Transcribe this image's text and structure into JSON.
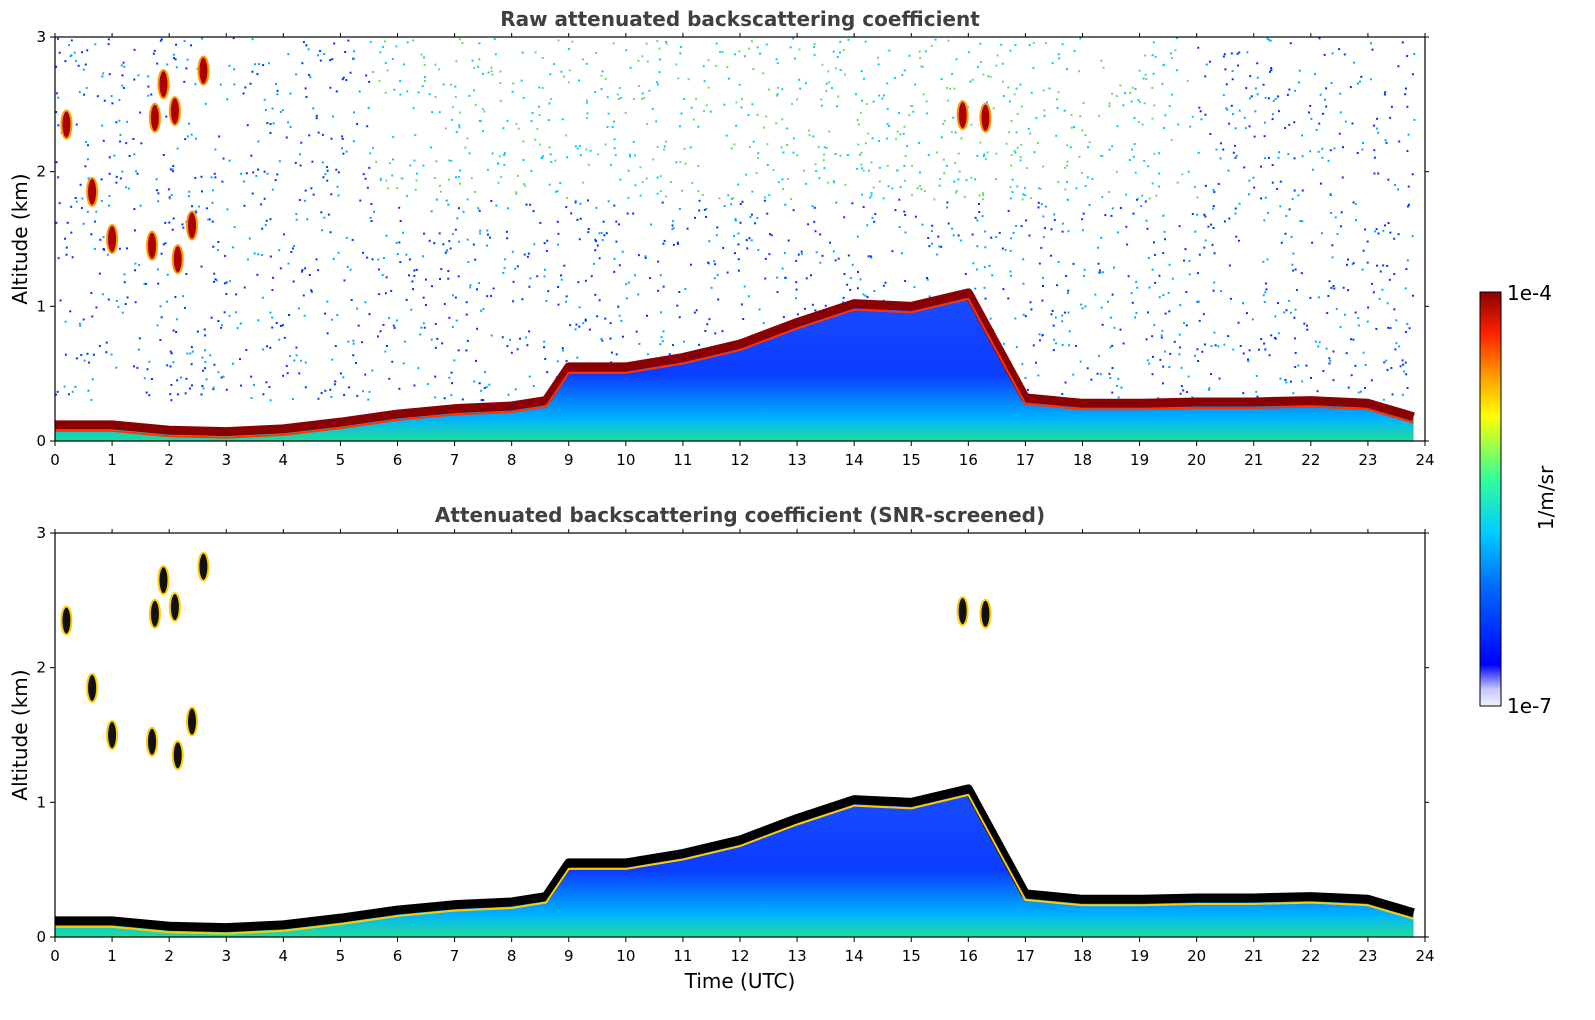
{
  "chart_data": [
    {
      "type": "heatmap",
      "title": "Raw attenuated backscattering coefficient",
      "xlabel": "",
      "ylabel": "Altitude (km)",
      "xlim": [
        0,
        24
      ],
      "ylim": [
        0,
        3
      ],
      "x_ticks": [
        0,
        1,
        2,
        3,
        4,
        5,
        6,
        7,
        8,
        9,
        10,
        11,
        12,
        13,
        14,
        15,
        16,
        17,
        18,
        19,
        20,
        21,
        22,
        23,
        24
      ],
      "x_tick_labels": [
        "0",
        "1",
        "2",
        "3",
        "4",
        "5",
        "6",
        "7",
        "8",
        "9",
        "10",
        "11",
        "12",
        "13",
        "14",
        "15",
        "16",
        "17",
        "18",
        "19",
        "20",
        "21",
        "22",
        "23",
        "24"
      ],
      "y_ticks": [
        0,
        1,
        2,
        3
      ],
      "y_tick_labels": [
        "0",
        "1",
        "2",
        "3"
      ],
      "boundary_layer_top_km": [
        {
          "x": 0,
          "y": 0.12
        },
        {
          "x": 1,
          "y": 0.12
        },
        {
          "x": 2,
          "y": 0.08
        },
        {
          "x": 3,
          "y": 0.07
        },
        {
          "x": 4,
          "y": 0.09
        },
        {
          "x": 5,
          "y": 0.14
        },
        {
          "x": 6,
          "y": 0.2
        },
        {
          "x": 7,
          "y": 0.24
        },
        {
          "x": 8,
          "y": 0.26
        },
        {
          "x": 8.6,
          "y": 0.3
        },
        {
          "x": 9,
          "y": 0.55
        },
        {
          "x": 10,
          "y": 0.55
        },
        {
          "x": 11,
          "y": 0.62
        },
        {
          "x": 12,
          "y": 0.72
        },
        {
          "x": 13,
          "y": 0.88
        },
        {
          "x": 14,
          "y": 1.02
        },
        {
          "x": 15,
          "y": 1.0
        },
        {
          "x": 16,
          "y": 1.1
        },
        {
          "x": 17,
          "y": 0.32
        },
        {
          "x": 18,
          "y": 0.28
        },
        {
          "x": 19,
          "y": 0.28
        },
        {
          "x": 20,
          "y": 0.29
        },
        {
          "x": 21,
          "y": 0.29
        },
        {
          "x": 22,
          "y": 0.3
        },
        {
          "x": 23,
          "y": 0.28
        },
        {
          "x": 23.8,
          "y": 0.18
        }
      ],
      "cloud_patches": [
        {
          "x": 0.2,
          "y": 2.35
        },
        {
          "x": 0.65,
          "y": 1.85
        },
        {
          "x": 1.0,
          "y": 1.5
        },
        {
          "x": 1.9,
          "y": 2.65
        },
        {
          "x": 1.75,
          "y": 2.4
        },
        {
          "x": 2.1,
          "y": 2.45
        },
        {
          "x": 2.6,
          "y": 2.75
        },
        {
          "x": 2.4,
          "y": 1.6
        },
        {
          "x": 2.15,
          "y": 1.35
        },
        {
          "x": 1.7,
          "y": 1.45
        },
        {
          "x": 15.9,
          "y": 2.42
        },
        {
          "x": 16.3,
          "y": 2.4
        }
      ]
    },
    {
      "type": "heatmap",
      "title": "Attenuated backscattering coefficient (SNR-screened)",
      "xlabel": "Time (UTC)",
      "ylabel": "Altitude (km)",
      "xlim": [
        0,
        24
      ],
      "ylim": [
        0,
        3
      ],
      "x_ticks": [
        0,
        1,
        2,
        3,
        4,
        5,
        6,
        7,
        8,
        9,
        10,
        11,
        12,
        13,
        14,
        15,
        16,
        17,
        18,
        19,
        20,
        21,
        22,
        23,
        24
      ],
      "x_tick_labels": [
        "0",
        "1",
        "2",
        "3",
        "4",
        "5",
        "6",
        "7",
        "8",
        "9",
        "10",
        "11",
        "12",
        "13",
        "14",
        "15",
        "16",
        "17",
        "18",
        "19",
        "20",
        "21",
        "22",
        "23",
        "24"
      ],
      "y_ticks": [
        0,
        1,
        2,
        3
      ],
      "y_tick_labels": [
        "0",
        "1",
        "2",
        "3"
      ]
    }
  ],
  "colorbar": {
    "label": "1/m/sr",
    "max_label": "1e-4",
    "min_label": "1e-7",
    "scale": "log",
    "colors": [
      "#f0f0ff",
      "#c8c8ff",
      "#0000ff",
      "#0066ff",
      "#00ccff",
      "#33ff99",
      "#ffff00",
      "#ff9900",
      "#ff2200",
      "#8b0000"
    ]
  }
}
